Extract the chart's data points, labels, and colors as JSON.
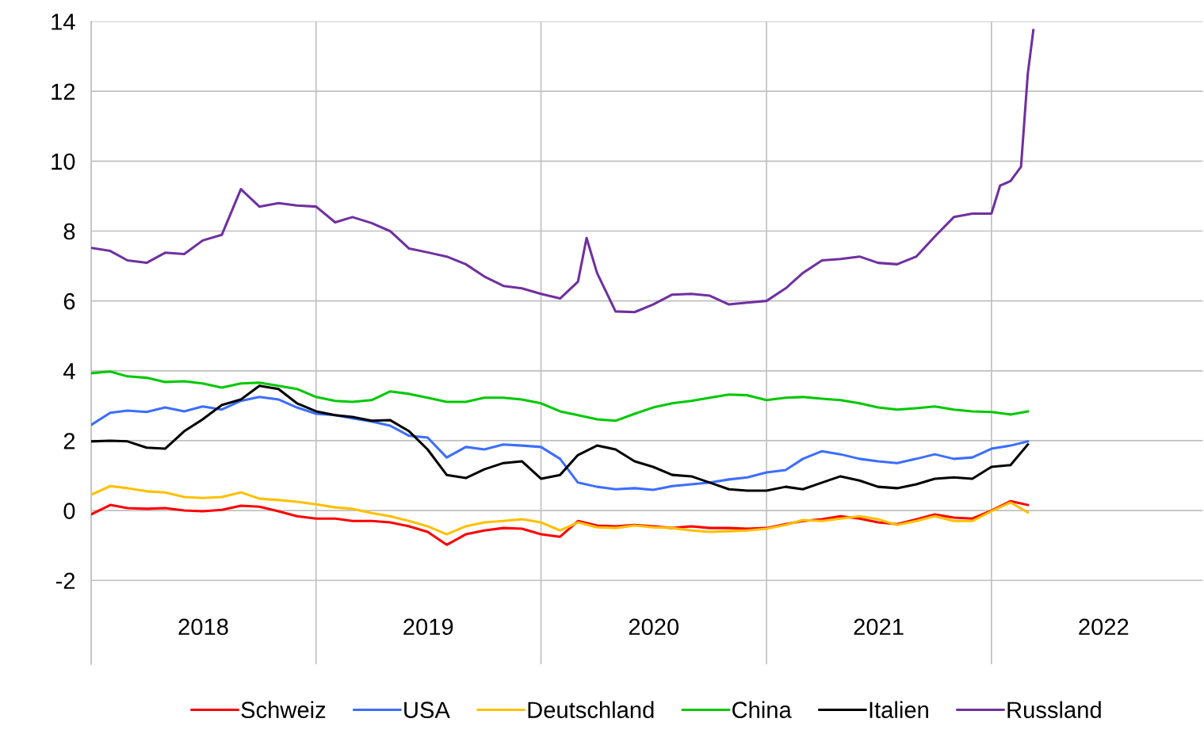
{
  "chart_data": {
    "type": "line",
    "x": [
      "2018-01-01",
      "2018-02-01",
      "2018-03-01",
      "2018-04-01",
      "2018-05-01",
      "2018-06-01",
      "2018-07-01",
      "2018-08-01",
      "2018-09-01",
      "2018-10-01",
      "2018-11-01",
      "2018-12-01",
      "2019-01-01",
      "2019-02-01",
      "2019-03-01",
      "2019-04-01",
      "2019-05-01",
      "2019-06-01",
      "2019-07-01",
      "2019-08-01",
      "2019-09-01",
      "2019-10-01",
      "2019-11-01",
      "2019-12-01",
      "2020-01-01",
      "2020-02-01",
      "2020-03-01",
      "2020-04-01",
      "2020-05-01",
      "2020-06-01",
      "2020-07-01",
      "2020-08-01",
      "2020-09-01",
      "2020-10-01",
      "2020-11-01",
      "2020-12-01",
      "2021-01-01",
      "2021-02-01",
      "2021-03-01",
      "2021-04-01",
      "2021-05-01",
      "2021-06-01",
      "2021-07-01",
      "2021-08-01",
      "2021-09-01",
      "2021-10-01",
      "2021-11-01",
      "2021-12-01",
      "2022-01-01",
      "2022-02-01",
      "2022-03-01"
    ],
    "series": [
      {
        "name": "Schweiz",
        "color": "#ff0000",
        "values": [
          -0.11,
          0.16,
          0.07,
          0.05,
          0.07,
          0,
          -0.02,
          0.02,
          0.14,
          0.11,
          -0.02,
          -0.16,
          -0.23,
          -0.23,
          -0.3,
          -0.3,
          -0.34,
          -0.45,
          -0.61,
          -0.98,
          -0.68,
          -0.57,
          -0.5,
          -0.52,
          -0.68,
          -0.75,
          -0.3,
          -0.43,
          -0.45,
          -0.41,
          -0.45,
          -0.5,
          -0.45,
          -0.5,
          -0.5,
          -0.52,
          -0.5,
          -0.39,
          -0.3,
          -0.25,
          -0.16,
          -0.23,
          -0.34,
          -0.39,
          -0.25,
          -0.11,
          -0.2,
          -0.23,
          0,
          0.27,
          0.16
        ]
      },
      {
        "name": "USA",
        "color": "#3c6eff",
        "values": [
          2.45,
          2.8,
          2.86,
          2.82,
          2.95,
          2.84,
          2.98,
          2.89,
          3.14,
          3.25,
          3.18,
          2.95,
          2.77,
          2.73,
          2.64,
          2.55,
          2.43,
          2.14,
          2.09,
          1.52,
          1.82,
          1.75,
          1.89,
          1.86,
          1.82,
          1.48,
          0.8,
          0.68,
          0.61,
          0.64,
          0.59,
          0.7,
          0.75,
          0.8,
          0.89,
          0.95,
          1.09,
          1.16,
          1.48,
          1.7,
          1.61,
          1.48,
          1.41,
          1.36,
          1.48,
          1.61,
          1.48,
          1.52,
          1.77,
          1.86,
          1.98
        ]
      },
      {
        "name": "Deutschland",
        "color": "#ffc000",
        "values": [
          0.45,
          0.7,
          0.64,
          0.55,
          0.52,
          0.39,
          0.36,
          0.39,
          0.52,
          0.34,
          0.3,
          0.25,
          0.18,
          0.09,
          0.05,
          -0.07,
          -0.16,
          -0.3,
          -0.45,
          -0.68,
          -0.45,
          -0.34,
          -0.3,
          -0.25,
          -0.34,
          -0.57,
          -0.34,
          -0.48,
          -0.5,
          -0.43,
          -0.48,
          -0.5,
          -0.57,
          -0.61,
          -0.59,
          -0.57,
          -0.52,
          -0.41,
          -0.27,
          -0.3,
          -0.23,
          -0.16,
          -0.25,
          -0.41,
          -0.3,
          -0.16,
          -0.3,
          -0.3,
          -0.02,
          0.23,
          -0.05
        ]
      },
      {
        "name": "China",
        "color": "#00c800",
        "values": [
          3.93,
          3.98,
          3.84,
          3.8,
          3.68,
          3.7,
          3.64,
          3.52,
          3.64,
          3.66,
          3.57,
          3.48,
          3.25,
          3.14,
          3.11,
          3.16,
          3.41,
          3.34,
          3.23,
          3.11,
          3.11,
          3.23,
          3.23,
          3.18,
          3.07,
          2.84,
          2.73,
          2.61,
          2.57,
          2.77,
          2.95,
          3.07,
          3.14,
          3.23,
          3.32,
          3.3,
          3.16,
          3.23,
          3.25,
          3.2,
          3.16,
          3.07,
          2.95,
          2.89,
          2.93,
          2.98,
          2.89,
          2.84,
          2.82,
          2.75,
          2.84
        ]
      },
      {
        "name": "Italien",
        "color": "#000000",
        "values": [
          1.98,
          2.0,
          1.98,
          1.8,
          1.77,
          2.27,
          2.61,
          3.02,
          3.18,
          3.57,
          3.48,
          3.07,
          2.84,
          2.73,
          2.68,
          2.57,
          2.59,
          2.27,
          1.75,
          1.02,
          0.93,
          1.18,
          1.36,
          1.41,
          0.91,
          1.02,
          1.59,
          1.86,
          1.75,
          1.41,
          1.25,
          1.02,
          0.98,
          0.8,
          0.61,
          0.57,
          0.57,
          0.68,
          0.61,
          0.8,
          0.98,
          0.86,
          0.68,
          0.64,
          0.75,
          0.91,
          0.95,
          0.91,
          1.25,
          1.3,
          1.89
        ]
      },
      {
        "name": "Russland",
        "color": "#7030a0",
        "x": [
          "2018-01-01",
          "2018-02-01",
          "2018-03-01",
          "2018-04-01",
          "2018-05-01",
          "2018-06-01",
          "2018-07-01",
          "2018-08-01",
          "2018-09-01",
          "2018-10-01",
          "2018-11-01",
          "2018-12-01",
          "2019-01-01",
          "2019-02-01",
          "2019-03-01",
          "2019-04-01",
          "2019-05-01",
          "2019-06-01",
          "2019-07-01",
          "2019-08-01",
          "2019-09-01",
          "2019-10-01",
          "2019-11-01",
          "2019-12-01",
          "2020-01-01",
          "2020-02-01",
          "2020-03-01",
          "2020-03-15",
          "2020-04-01",
          "2020-05-01",
          "2020-06-01",
          "2020-07-01",
          "2020-08-01",
          "2020-09-01",
          "2020-10-01",
          "2020-11-01",
          "2020-12-01",
          "2021-01-01",
          "2021-02-01",
          "2021-03-01",
          "2021-04-01",
          "2021-05-01",
          "2021-06-01",
          "2021-07-01",
          "2021-08-01",
          "2021-09-01",
          "2021-10-01",
          "2021-11-01",
          "2021-12-01",
          "2022-01-01",
          "2022-01-15",
          "2022-02-01",
          "2022-02-18",
          "2022-03-01",
          "2022-03-10"
        ],
        "values": [
          7.52,
          7.43,
          7.16,
          7.09,
          7.38,
          7.34,
          7.73,
          7.89,
          9.2,
          8.7,
          8.8,
          8.73,
          8.7,
          8.25,
          8.4,
          8.23,
          8.0,
          7.5,
          7.39,
          7.27,
          7.05,
          6.7,
          6.43,
          6.36,
          6.2,
          6.07,
          6.55,
          7.8,
          6.8,
          5.7,
          5.68,
          5.9,
          6.18,
          6.2,
          6.15,
          5.9,
          5.95,
          6.0,
          6.36,
          6.8,
          7.16,
          7.2,
          7.27,
          7.09,
          7.05,
          7.27,
          7.84,
          8.4,
          8.5,
          8.5,
          9.3,
          9.43,
          9.84,
          12.5,
          13.75
        ]
      }
    ],
    "xlim": [
      "2018-01-01",
      "2022-12-10"
    ],
    "xticks": [
      {
        "value": "2018-01-01",
        "label": null
      },
      {
        "value": "2018-07-02",
        "label": "2018"
      },
      {
        "value": "2019-01-01",
        "label": null
      },
      {
        "value": "2019-07-02",
        "label": "2019"
      },
      {
        "value": "2020-01-01",
        "label": null
      },
      {
        "value": "2020-07-02",
        "label": "2020"
      },
      {
        "value": "2021-01-01",
        "label": null
      },
      {
        "value": "2021-07-02",
        "label": "2021"
      },
      {
        "value": "2022-01-01",
        "label": null
      },
      {
        "value": "2022-07-02",
        "label": "2022"
      }
    ],
    "ylim": [
      -4.4,
      14
    ],
    "yticks": [
      -2,
      0,
      2,
      4,
      6,
      8,
      10,
      12,
      14
    ],
    "grid": true,
    "legend": "bottom",
    "marker": "none",
    "line_style": "solid"
  }
}
